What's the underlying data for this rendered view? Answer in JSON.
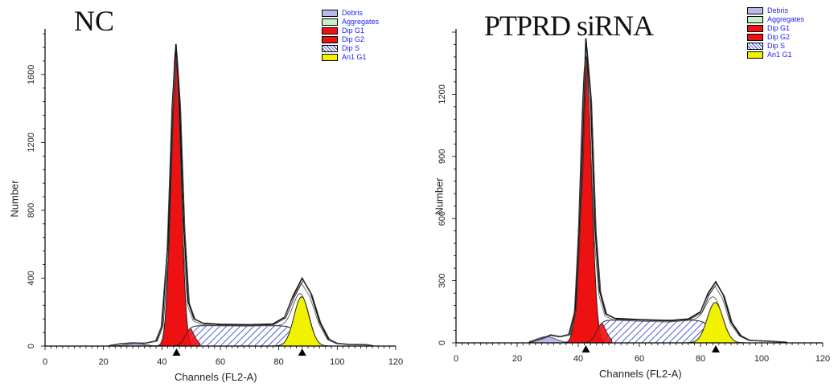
{
  "chart_data": [
    {
      "type": "area",
      "title": "NC",
      "xlabel": "Channels (FL2-A)",
      "ylabel": "Number",
      "xlim": [
        0,
        120
      ],
      "ylim": [
        0,
        1850
      ],
      "xticks": [
        0,
        20,
        40,
        60,
        80,
        100,
        120
      ],
      "yticks": [
        0,
        400,
        800,
        1200,
        1600
      ],
      "markers": [
        45,
        88
      ],
      "legend_position": "top-right",
      "legend": [
        {
          "label": "Debris",
          "color": "#b9b9ee"
        },
        {
          "label": "Aggregates",
          "color": "#c8efc8"
        },
        {
          "label": "Dip G1",
          "color": "#ee1111"
        },
        {
          "label": "Dip G2",
          "color": "#ee1111"
        },
        {
          "label": "Dip S",
          "color": "#2233cc"
        },
        {
          "label": "An1 G1",
          "color": "#f2f200"
        }
      ],
      "series": [
        {
          "name": "Dip G1",
          "peak_x": 44.8,
          "peak_y": 1750,
          "sigma": 1.7
        },
        {
          "name": "Dip S",
          "x_start": 47,
          "x_end": 88,
          "level": 120
        },
        {
          "name": "An1 G1",
          "peak_x": 87.8,
          "peak_y": 290,
          "sigma": 2.6
        },
        {
          "name": "Debris",
          "x_start": 24,
          "x_end": 42,
          "level": 15
        },
        {
          "name": "Total",
          "points": [
            [
              22,
              2
            ],
            [
              26,
              14
            ],
            [
              30,
              18
            ],
            [
              34,
              16
            ],
            [
              38,
              30
            ],
            [
              40,
              120
            ],
            [
              42,
              600
            ],
            [
              43.5,
              1400
            ],
            [
              44.8,
              1780
            ],
            [
              46,
              1450
            ],
            [
              47.5,
              700
            ],
            [
              49,
              260
            ],
            [
              51,
              160
            ],
            [
              54,
              135
            ],
            [
              60,
              128
            ],
            [
              70,
              126
            ],
            [
              78,
              130
            ],
            [
              82,
              170
            ],
            [
              85,
              300
            ],
            [
              88,
              400
            ],
            [
              91,
              310
            ],
            [
              94,
              140
            ],
            [
              97,
              40
            ],
            [
              100,
              15
            ],
            [
              104,
              10
            ],
            [
              110,
              8
            ],
            [
              112,
              2
            ]
          ]
        }
      ]
    },
    {
      "type": "area",
      "title": "PTPRD siRNA",
      "xlabel": "Channels (FL2-A)",
      "ylabel": "Number",
      "xlim": [
        0,
        120
      ],
      "ylim": [
        0,
        1500
      ],
      "xticks": [
        0,
        20,
        40,
        60,
        80,
        100,
        120
      ],
      "yticks": [
        0,
        300,
        600,
        900,
        1200
      ],
      "markers": [
        42.5,
        85
      ],
      "legend_position": "top-right",
      "legend": [
        {
          "label": "Debris",
          "color": "#b9b9ee"
        },
        {
          "label": "Aggregates",
          "color": "#c8efc8"
        },
        {
          "label": "Dip G1",
          "color": "#ee1111"
        },
        {
          "label": "Dip G2",
          "color": "#ee1111"
        },
        {
          "label": "Dip S",
          "color": "#2233cc"
        },
        {
          "label": "An1 G1",
          "color": "#f2f200"
        }
      ],
      "series": [
        {
          "name": "Dip G1",
          "peak_x": 42.5,
          "peak_y": 1380,
          "sigma": 1.8
        },
        {
          "name": "Dip S",
          "x_start": 45,
          "x_end": 85,
          "level": 110
        },
        {
          "name": "An1 G1",
          "peak_x": 84.8,
          "peak_y": 195,
          "sigma": 2.6
        },
        {
          "name": "Debris",
          "x_start": 24,
          "x_end": 39,
          "level": 30
        },
        {
          "name": "Total",
          "points": [
            [
              24,
              2
            ],
            [
              28,
              20
            ],
            [
              31,
              38
            ],
            [
              34,
              30
            ],
            [
              37,
              40
            ],
            [
              39,
              160
            ],
            [
              41,
              800
            ],
            [
              42.5,
              1470
            ],
            [
              44,
              1200
            ],
            [
              45.5,
              550
            ],
            [
              47,
              250
            ],
            [
              49,
              140
            ],
            [
              52,
              118
            ],
            [
              60,
              112
            ],
            [
              70,
              108
            ],
            [
              76,
              115
            ],
            [
              80,
              150
            ],
            [
              82.5,
              240
            ],
            [
              85,
              295
            ],
            [
              87.5,
              230
            ],
            [
              90,
              100
            ],
            [
              93,
              35
            ],
            [
              96,
              12
            ],
            [
              102,
              8
            ],
            [
              108,
              3
            ]
          ]
        }
      ]
    }
  ]
}
